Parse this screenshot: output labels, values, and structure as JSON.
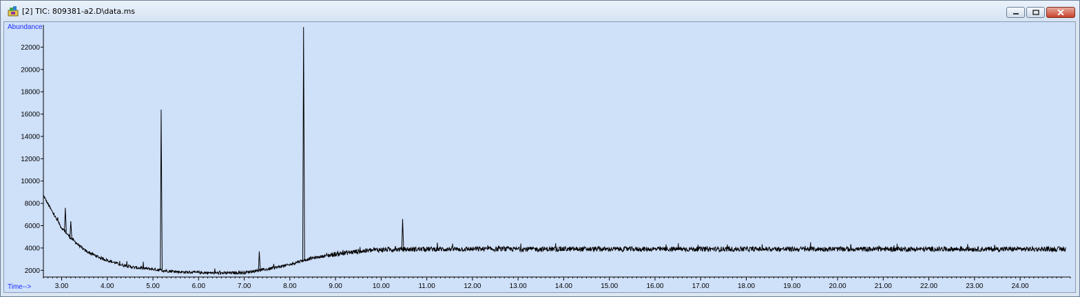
{
  "window": {
    "title": "[2] TIC: 809381-a2.D\\data.ms",
    "icon": "chromatogram-app-icon",
    "controls": [
      "minimize-icon",
      "restore-icon",
      "close-icon"
    ]
  },
  "colors": {
    "plot_background": "#cfe0f9",
    "trace": "#000000",
    "axis_label": "#1a2cff"
  },
  "chart_data": {
    "type": "line",
    "title": "",
    "xlabel": "Time-->",
    "ylabel": "Abundance",
    "xlim": [
      2.6,
      25.1
    ],
    "ylim": [
      1400,
      24000
    ],
    "yticks": [
      "2000",
      "4000",
      "6000",
      "8000",
      "10000",
      "12000",
      "14000",
      "16000",
      "18000",
      "20000",
      "22000"
    ],
    "xticks": [
      "3.00",
      "4.00",
      "5.00",
      "6.00",
      "7.00",
      "8.00",
      "9.00",
      "10.00",
      "11.00",
      "12.00",
      "13.00",
      "14.00",
      "15.00",
      "16.00",
      "17.00",
      "18.00",
      "19.00",
      "20.00",
      "21.00",
      "22.00",
      "23.00",
      "24.00"
    ],
    "grid": false,
    "series": [
      {
        "x": [
          2.6,
          2.8,
          3.0,
          3.2,
          3.5,
          3.8,
          4.0,
          4.3,
          4.6,
          5.0,
          5.3,
          5.6,
          6.0,
          6.5,
          7.0,
          7.5,
          8.0,
          8.2,
          8.5,
          9.0,
          9.5,
          10.0,
          11.0,
          12.0,
          13.0,
          14.0,
          15.0,
          16.0,
          17.0,
          18.0,
          19.0,
          20.0,
          21.0,
          22.0,
          23.0,
          24.0,
          25.0
        ],
        "y": [
          8700,
          7200,
          5800,
          4900,
          3800,
          3200,
          2900,
          2500,
          2250,
          2100,
          1950,
          1850,
          1800,
          1750,
          1800,
          2100,
          2500,
          2800,
          3100,
          3450,
          3700,
          3850,
          3900,
          3900,
          3900,
          3900,
          3900,
          3900,
          3900,
          3900,
          3900,
          3900,
          3900,
          3900,
          3900,
          3900,
          3900
        ]
      }
    ],
    "peaks": [
      {
        "x": 3.08,
        "y": 7600
      },
      {
        "x": 3.2,
        "y": 6400
      },
      {
        "x": 5.18,
        "y": 16400
      },
      {
        "x": 7.33,
        "y": 3700
      },
      {
        "x": 8.3,
        "y": 23800
      },
      {
        "x": 10.47,
        "y": 6600
      }
    ]
  }
}
